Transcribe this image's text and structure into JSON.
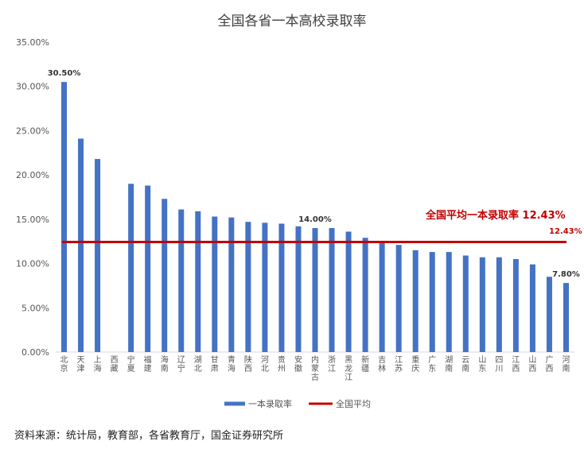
{
  "chart_data": {
    "type": "bar",
    "title": "全国各省一本高校录取率",
    "categories": [
      "北京",
      "天津",
      "上海",
      "西藏",
      "宁夏",
      "福建",
      "海南",
      "辽宁",
      "湖北",
      "甘肃",
      "青海",
      "陕西",
      "河北",
      "贵州",
      "安徽",
      "内蒙古",
      "浙江",
      "黑龙江",
      "新疆",
      "吉林",
      "江苏",
      "重庆",
      "广东",
      "湖南",
      "云南",
      "山东",
      "四川",
      "江西",
      "山西",
      "广西",
      "河南"
    ],
    "series": [
      {
        "name": "一本录取率",
        "type": "bar",
        "color": "#4472C4",
        "values": [
          30.5,
          24.1,
          21.8,
          0,
          19.0,
          18.8,
          17.3,
          16.1,
          15.9,
          15.3,
          15.2,
          14.7,
          14.6,
          14.5,
          14.2,
          14.0,
          14.0,
          13.6,
          12.9,
          12.4,
          12.1,
          11.5,
          11.3,
          11.3,
          10.9,
          10.7,
          10.7,
          10.5,
          9.9,
          8.5,
          7.8
        ]
      },
      {
        "name": "全国平均",
        "type": "line",
        "color": "#C00000",
        "value": 12.43
      }
    ],
    "ylim": [
      0,
      35
    ],
    "yticks": [
      "0.00%",
      "5.00%",
      "10.00%",
      "15.00%",
      "20.00%",
      "25.00%",
      "30.00%",
      "35.00%"
    ],
    "grid": false,
    "legend": "bottom",
    "data_labels": [
      {
        "index": 0,
        "text": "30.50%"
      },
      {
        "index": 15,
        "text": "14.00%"
      },
      {
        "index": 30,
        "text": "7.80%"
      }
    ],
    "annotations": {
      "average_title": "全国平均一本录取率 12.43%",
      "average_value": "12.43%"
    }
  },
  "footer": {
    "source": "资料来源：统计局，教育部，各省教育厅，国金证券研究所"
  }
}
